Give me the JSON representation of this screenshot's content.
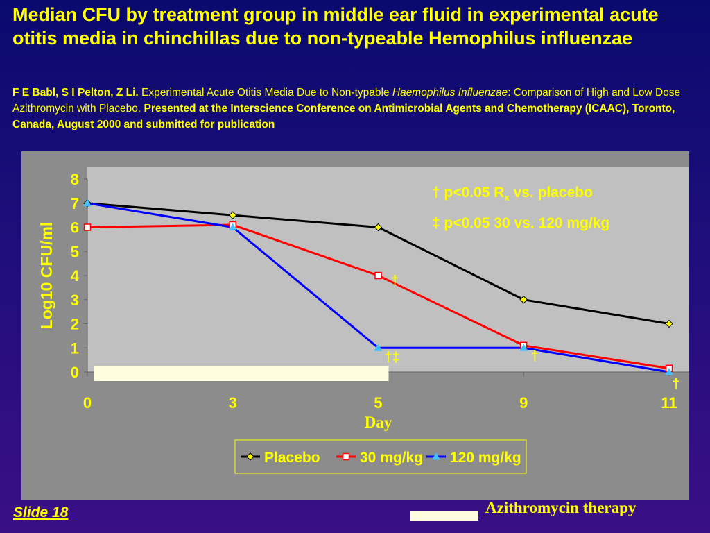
{
  "slide": {
    "title": "Median CFU by treatment group in middle ear fluid in experimental acute otitis media in chinchillas due to non-typeable Hemophilus influenzae",
    "citation": {
      "authors": "F E Babl, S I Pelton, Z Li.",
      "study_title_a": " Experimental Acute Otitis Media Due to Non-typable ",
      "study_title_italic": "Haemophilus Influenzae",
      "study_title_b": ": Comparison of High and Low Dose Azithromycin with Placebo. ",
      "presented": "Presented at the Interscience Conference on Antimicrobial Agents and Chemotherapy (ICAAC), Toronto, Canada, August 2000 and submitted for publication"
    },
    "slide_label": "Slide  18",
    "therapy_legend_label": "Azithromycin therapy"
  },
  "colors": {
    "text_accent": "#ffff00",
    "plot_area": "#c0c0c0",
    "placebo": "#000000",
    "low_dose": "#ff0000",
    "high_dose": "#0000ff",
    "therapy_bar": "#ffffe0"
  },
  "chart_data": {
    "type": "line",
    "x": [
      0,
      3,
      5,
      9,
      11
    ],
    "xlabel": "Day",
    "ylabel": "Log10 CFU/ml",
    "ylim": [
      0,
      8
    ],
    "yticks": [
      0,
      1,
      2,
      3,
      4,
      5,
      6,
      7,
      8
    ],
    "grid": false,
    "legend_position": "bottom",
    "series": [
      {
        "name": "Placebo",
        "values": [
          7.0,
          6.5,
          6.0,
          3.0,
          2.0
        ],
        "color": "#000000",
        "marker": "diamond"
      },
      {
        "name": "30 mg/kg",
        "values": [
          6.0,
          6.1,
          4.0,
          1.1,
          0.15
        ],
        "color": "#ff0000",
        "marker": "square"
      },
      {
        "name": "120 mg/kg",
        "values": [
          7.0,
          6.0,
          1.0,
          1.0,
          0.0
        ],
        "color": "#0000ff",
        "marker": "triangle"
      }
    ],
    "significance_marks": [
      {
        "day": 5,
        "y": 4.0,
        "text": "†"
      },
      {
        "day": 5,
        "y": 1.0,
        "text": "†‡"
      },
      {
        "day": 9,
        "y": 1.0,
        "text": "†"
      },
      {
        "day": 11,
        "y": 0.0,
        "text": "†"
      }
    ],
    "annotations": {
      "line1_a": "† p<0.05  R",
      "line1_sub": "x",
      "line1_b": " vs. placebo",
      "line2": "‡ p<0.05 30 vs. 120 mg/kg"
    },
    "therapy_period": {
      "start_day": 0,
      "end_day": 5
    }
  }
}
